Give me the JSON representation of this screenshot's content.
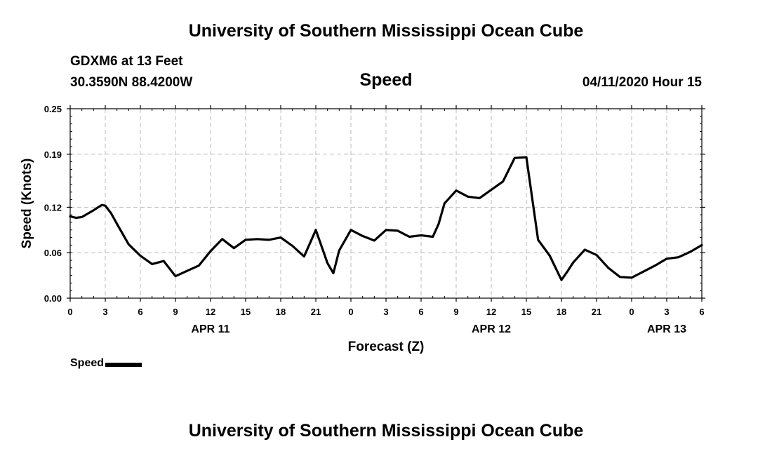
{
  "header": {
    "title": "University of Southern Mississippi Ocean Cube",
    "station": "GDXM6 at 13 Feet",
    "coords": "30.3590N 88.4200W",
    "datetime": "04/11/2020 Hour 15"
  },
  "footer": {
    "title": "University of Southern Mississippi Ocean Cube"
  },
  "legend": {
    "label": "Speed"
  },
  "chart_data": {
    "type": "line",
    "title": "Speed",
    "xlabel": "Forecast (Z)",
    "ylabel": "Speed (Knots)",
    "xlim": [
      0,
      54
    ],
    "ylim": [
      0,
      0.25
    ],
    "grid": true,
    "yticks": [
      0,
      0.06,
      0.12,
      0.19,
      0.25
    ],
    "ytick_labels": [
      "0.00",
      "0.06",
      "0.12",
      "0.19",
      "0.25"
    ],
    "xticks": [
      0,
      3,
      6,
      9,
      12,
      15,
      18,
      21,
      24,
      27,
      30,
      33,
      36,
      39,
      42,
      45,
      48,
      51,
      54
    ],
    "xtick_labels": [
      "0",
      "3",
      "6",
      "9",
      "12",
      "15",
      "18",
      "21",
      "0",
      "3",
      "6",
      "9",
      "12",
      "15",
      "18",
      "21",
      "0",
      "3",
      "6"
    ],
    "date_labels": [
      {
        "x": 12,
        "label": "APR 11"
      },
      {
        "x": 36,
        "label": "APR 12"
      },
      {
        "x": 51,
        "label": "APR 13"
      }
    ],
    "series": [
      {
        "name": "Speed",
        "color": "#000000",
        "x": [
          0,
          0.5,
          1,
          2,
          2.7,
          3,
          3.5,
          4,
          5,
          6,
          7,
          8,
          9,
          10,
          11,
          12,
          13,
          14,
          15,
          16,
          17,
          18,
          19,
          20,
          21,
          22,
          22.5,
          23,
          24,
          25,
          26,
          27,
          28,
          29,
          30,
          31,
          31.5,
          32,
          33,
          34,
          35,
          36,
          37,
          38,
          39,
          40,
          41,
          42,
          42.5,
          43,
          44,
          45,
          46,
          47,
          48,
          48.5,
          49,
          50,
          51,
          52,
          53,
          54
        ],
        "y": [
          0.108,
          0.106,
          0.107,
          0.116,
          0.123,
          0.122,
          0.112,
          0.098,
          0.071,
          0.056,
          0.045,
          0.049,
          0.029,
          0.036,
          0.043,
          0.062,
          0.078,
          0.066,
          0.077,
          0.078,
          0.077,
          0.08,
          0.069,
          0.055,
          0.09,
          0.046,
          0.033,
          0.063,
          0.09,
          0.082,
          0.076,
          0.09,
          0.089,
          0.081,
          0.083,
          0.081,
          0.098,
          0.125,
          0.142,
          0.134,
          0.132,
          0.143,
          0.154,
          0.185,
          0.186,
          0.077,
          0.056,
          0.024,
          0.035,
          0.047,
          0.064,
          0.057,
          0.04,
          0.028,
          0.027,
          0.031,
          0.035,
          0.043,
          0.052,
          0.054,
          0.061,
          0.07
        ]
      }
    ]
  }
}
